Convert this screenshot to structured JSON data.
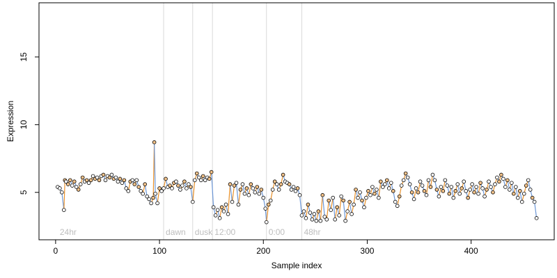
{
  "chart_data": {
    "type": "scatter",
    "xlabel": "Sample index",
    "ylabel": "Expression",
    "xlim": [
      -16,
      480
    ],
    "ylim": [
      1.5,
      19.0
    ],
    "x_ticks": [
      0,
      100,
      200,
      300,
      400
    ],
    "y_ticks": [
      5,
      10,
      15
    ],
    "grid": false,
    "colors": {
      "point_outline": "#000000",
      "orange_point": "#f2c28a",
      "white_point": "#ffffff",
      "orange_line": "#e8902a",
      "blue_line": "#6b96d6",
      "separator": "#d9d9d9",
      "section_label": "#bdbdbd"
    },
    "sections": [
      {
        "label": "24hr",
        "x": 2
      },
      {
        "label": "dawn",
        "x": 104
      },
      {
        "label": "dusk",
        "x": 132
      },
      {
        "label": "12:00",
        "x": 151
      },
      {
        "label": "0:00",
        "x": 203
      },
      {
        "label": "48hr",
        "x": 237
      }
    ],
    "separators": [
      104,
      132,
      151,
      203,
      237
    ],
    "points": [
      [
        2,
        5.4,
        0
      ],
      [
        4,
        5.3,
        0
      ],
      [
        6,
        5.0,
        0
      ],
      [
        8,
        3.7,
        0
      ],
      [
        9,
        5.9,
        1
      ],
      [
        10,
        5.8,
        0
      ],
      [
        12,
        5.6,
        1
      ],
      [
        14,
        5.9,
        1
      ],
      [
        16,
        5.5,
        0
      ],
      [
        18,
        5.8,
        1
      ],
      [
        20,
        5.4,
        0
      ],
      [
        22,
        5.2,
        1
      ],
      [
        24,
        5.6,
        0
      ],
      [
        26,
        6.1,
        1
      ],
      [
        28,
        5.8,
        0
      ],
      [
        30,
        5.9,
        1
      ],
      [
        32,
        5.7,
        0
      ],
      [
        34,
        5.9,
        1
      ],
      [
        36,
        6.2,
        0
      ],
      [
        38,
        6.0,
        1
      ],
      [
        40,
        6.1,
        0
      ],
      [
        42,
        5.9,
        1
      ],
      [
        44,
        6.2,
        0
      ],
      [
        46,
        6.3,
        1
      ],
      [
        48,
        5.9,
        0
      ],
      [
        50,
        6.2,
        0
      ],
      [
        52,
        6.1,
        1
      ],
      [
        54,
        6.3,
        0
      ],
      [
        56,
        6.0,
        1
      ],
      [
        58,
        6.1,
        0
      ],
      [
        60,
        5.8,
        0
      ],
      [
        62,
        6.0,
        1
      ],
      [
        64,
        5.7,
        0
      ],
      [
        66,
        5.9,
        1
      ],
      [
        68,
        5.3,
        0
      ],
      [
        70,
        5.1,
        0
      ],
      [
        72,
        5.8,
        1
      ],
      [
        74,
        5.9,
        0
      ],
      [
        76,
        5.6,
        1
      ],
      [
        78,
        5.9,
        0
      ],
      [
        80,
        5.4,
        1
      ],
      [
        82,
        5.1,
        0
      ],
      [
        84,
        4.9,
        0
      ],
      [
        86,
        5.6,
        1
      ],
      [
        88,
        4.7,
        0
      ],
      [
        90,
        4.5,
        0
      ],
      [
        92,
        4.2,
        0
      ],
      [
        94,
        4.6,
        1
      ],
      [
        95,
        8.7,
        1
      ],
      [
        96,
        4.9,
        0
      ],
      [
        98,
        4.2,
        0
      ],
      [
        100,
        5.3,
        1
      ],
      [
        102,
        5.1,
        0
      ],
      [
        104,
        5.3,
        0
      ],
      [
        106,
        6.0,
        1
      ],
      [
        108,
        5.4,
        0
      ],
      [
        110,
        5.5,
        1
      ],
      [
        112,
        5.3,
        0
      ],
      [
        114,
        5.7,
        1
      ],
      [
        116,
        5.8,
        0
      ],
      [
        118,
        5.5,
        1
      ],
      [
        120,
        5.2,
        0
      ],
      [
        122,
        5.5,
        0
      ],
      [
        124,
        5.8,
        1
      ],
      [
        126,
        5.3,
        0
      ],
      [
        128,
        5.6,
        0
      ],
      [
        130,
        5.4,
        1
      ],
      [
        132,
        4.3,
        0
      ],
      [
        134,
        5.9,
        0
      ],
      [
        136,
        6.4,
        1
      ],
      [
        138,
        6.1,
        0
      ],
      [
        140,
        5.9,
        0
      ],
      [
        142,
        6.2,
        1
      ],
      [
        144,
        5.9,
        0
      ],
      [
        146,
        6.1,
        0
      ],
      [
        148,
        6.0,
        1
      ],
      [
        150,
        6.5,
        1
      ],
      [
        152,
        3.9,
        0
      ],
      [
        154,
        3.3,
        0
      ],
      [
        156,
        3.7,
        0
      ],
      [
        158,
        3.1,
        0
      ],
      [
        160,
        3.9,
        1
      ],
      [
        162,
        3.6,
        0
      ],
      [
        164,
        4.1,
        0
      ],
      [
        166,
        3.4,
        0
      ],
      [
        168,
        5.6,
        1
      ],
      [
        170,
        4.3,
        0
      ],
      [
        172,
        5.5,
        1
      ],
      [
        174,
        5.7,
        0
      ],
      [
        176,
        4.1,
        0
      ],
      [
        178,
        5.2,
        1
      ],
      [
        180,
        5.6,
        0
      ],
      [
        182,
        4.9,
        0
      ],
      [
        184,
        5.3,
        1
      ],
      [
        186,
        4.8,
        0
      ],
      [
        188,
        5.6,
        1
      ],
      [
        190,
        5.3,
        0
      ],
      [
        192,
        5.0,
        0
      ],
      [
        194,
        5.4,
        1
      ],
      [
        196,
        4.9,
        0
      ],
      [
        198,
        5.2,
        1
      ],
      [
        200,
        4.6,
        0
      ],
      [
        202,
        3.8,
        0
      ],
      [
        203,
        2.8,
        0
      ],
      [
        205,
        4.1,
        1
      ],
      [
        207,
        4.4,
        0
      ],
      [
        209,
        5.2,
        0
      ],
      [
        211,
        5.8,
        1
      ],
      [
        213,
        5.6,
        0
      ],
      [
        215,
        5.2,
        0
      ],
      [
        217,
        5.6,
        1
      ],
      [
        219,
        6.3,
        1
      ],
      [
        221,
        5.8,
        0
      ],
      [
        223,
        5.7,
        0
      ],
      [
        225,
        5.6,
        1
      ],
      [
        227,
        5.2,
        0
      ],
      [
        229,
        5.4,
        0
      ],
      [
        231,
        5.1,
        0
      ],
      [
        233,
        5.3,
        1
      ],
      [
        235,
        4.8,
        0
      ],
      [
        237,
        3.3,
        0
      ],
      [
        239,
        3.6,
        0
      ],
      [
        241,
        3.1,
        0
      ],
      [
        243,
        4.1,
        1
      ],
      [
        245,
        3.5,
        0
      ],
      [
        247,
        3.0,
        0
      ],
      [
        249,
        3.4,
        0
      ],
      [
        251,
        2.9,
        0
      ],
      [
        253,
        3.6,
        1
      ],
      [
        255,
        2.9,
        0
      ],
      [
        257,
        4.8,
        1
      ],
      [
        259,
        3.2,
        0
      ],
      [
        261,
        3.0,
        0
      ],
      [
        263,
        4.4,
        1
      ],
      [
        265,
        3.7,
        0
      ],
      [
        267,
        4.6,
        0
      ],
      [
        269,
        3.0,
        0
      ],
      [
        271,
        3.9,
        1
      ],
      [
        273,
        3.3,
        0
      ],
      [
        275,
        4.7,
        0
      ],
      [
        277,
        4.4,
        1
      ],
      [
        279,
        2.9,
        0
      ],
      [
        281,
        3.6,
        0
      ],
      [
        283,
        4.3,
        1
      ],
      [
        285,
        3.4,
        0
      ],
      [
        287,
        4.1,
        0
      ],
      [
        289,
        5.2,
        1
      ],
      [
        291,
        4.6,
        0
      ],
      [
        293,
        5.0,
        0
      ],
      [
        295,
        4.4,
        1
      ],
      [
        297,
        3.9,
        0
      ],
      [
        299,
        4.6,
        0
      ],
      [
        301,
        5.1,
        1
      ],
      [
        303,
        4.8,
        0
      ],
      [
        305,
        5.4,
        0
      ],
      [
        307,
        4.9,
        1
      ],
      [
        309,
        5.2,
        0
      ],
      [
        311,
        4.6,
        0
      ],
      [
        313,
        5.8,
        1
      ],
      [
        315,
        5.4,
        0
      ],
      [
        317,
        5.6,
        0
      ],
      [
        319,
        5.9,
        1
      ],
      [
        321,
        5.3,
        0
      ],
      [
        323,
        5.7,
        0
      ],
      [
        325,
        5.1,
        1
      ],
      [
        327,
        4.3,
        0
      ],
      [
        329,
        4.0,
        0
      ],
      [
        331,
        4.7,
        1
      ],
      [
        333,
        5.5,
        0
      ],
      [
        335,
        5.9,
        0
      ],
      [
        337,
        6.4,
        1
      ],
      [
        339,
        6.1,
        0
      ],
      [
        341,
        5.6,
        0
      ],
      [
        343,
        5.0,
        1
      ],
      [
        345,
        4.5,
        0
      ],
      [
        347,
        5.3,
        0
      ],
      [
        349,
        5.0,
        1
      ],
      [
        351,
        5.8,
        0
      ],
      [
        353,
        5.5,
        0
      ],
      [
        355,
        5.1,
        1
      ],
      [
        357,
        4.8,
        0
      ],
      [
        359,
        5.9,
        0
      ],
      [
        361,
        5.4,
        1
      ],
      [
        363,
        6.3,
        0
      ],
      [
        365,
        5.9,
        0
      ],
      [
        367,
        5.2,
        1
      ],
      [
        369,
        4.7,
        0
      ],
      [
        371,
        5.4,
        0
      ],
      [
        373,
        5.1,
        1
      ],
      [
        375,
        5.9,
        0
      ],
      [
        377,
        5.5,
        0
      ],
      [
        379,
        4.9,
        1
      ],
      [
        381,
        5.4,
        0
      ],
      [
        383,
        4.6,
        0
      ],
      [
        385,
        5.1,
        1
      ],
      [
        387,
        5.6,
        0
      ],
      [
        389,
        4.9,
        0
      ],
      [
        391,
        5.3,
        1
      ],
      [
        393,
        5.8,
        0
      ],
      [
        395,
        5.1,
        0
      ],
      [
        397,
        4.6,
        1
      ],
      [
        399,
        5.2,
        0
      ],
      [
        401,
        5.6,
        0
      ],
      [
        403,
        5.0,
        1
      ],
      [
        405,
        5.4,
        0
      ],
      [
        407,
        4.9,
        0
      ],
      [
        409,
        5.7,
        1
      ],
      [
        411,
        5.3,
        0
      ],
      [
        413,
        4.7,
        0
      ],
      [
        415,
        5.2,
        1
      ],
      [
        417,
        5.8,
        0
      ],
      [
        419,
        5.4,
        0
      ],
      [
        421,
        5.0,
        1
      ],
      [
        423,
        5.6,
        0
      ],
      [
        425,
        6.1,
        0
      ],
      [
        427,
        5.8,
        1
      ],
      [
        429,
        6.3,
        1
      ],
      [
        431,
        6.0,
        0
      ],
      [
        433,
        5.4,
        0
      ],
      [
        435,
        5.9,
        1
      ],
      [
        437,
        5.2,
        0
      ],
      [
        439,
        5.7,
        0
      ],
      [
        441,
        4.9,
        1
      ],
      [
        443,
        5.4,
        0
      ],
      [
        445,
        4.6,
        0
      ],
      [
        447,
        5.1,
        1
      ],
      [
        449,
        4.3,
        0
      ],
      [
        451,
        4.9,
        0
      ],
      [
        453,
        5.5,
        1
      ],
      [
        455,
        5.9,
        0
      ],
      [
        457,
        5.2,
        0
      ],
      [
        459,
        4.6,
        1
      ],
      [
        461,
        4.3,
        0
      ],
      [
        463,
        3.1,
        0
      ]
    ]
  }
}
